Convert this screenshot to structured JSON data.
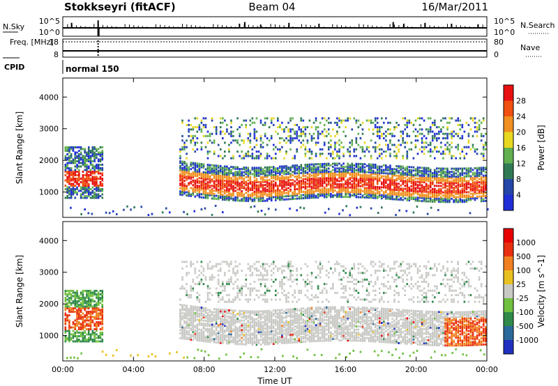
{
  "chart_data": [
    {
      "type": "line",
      "title": "Stokkseyri (fitACF)",
      "beam": "Beam 04",
      "date": "16/Mar/2011",
      "panels": {
        "noise": {
          "left_label": "N.Sky",
          "right_label": "N.Search",
          "left_ticks": [
            "10^5",
            "10^0"
          ],
          "right_ticks": [
            "10^5",
            "10^0"
          ],
          "spikes_hours": [
            0.5,
            2.0,
            10.0,
            10.3,
            11.2,
            12.8,
            14.5,
            18.7,
            19.3,
            20.5,
            22.0,
            23.5
          ],
          "spike_heights": [
            0.6,
            0.9,
            0.5,
            0.7,
            0.4,
            0.6,
            0.5,
            0.7,
            0.5,
            0.6,
            0.5,
            0.4
          ]
        },
        "frequency": {
          "left_label": "Freq. [MHz]",
          "right_label": "Nave",
          "left_ticks": [
            "18",
            "8"
          ],
          "right_ticks": [
            "80",
            "0"
          ],
          "gap_hour": 2.0
        },
        "cpid": {
          "label": "CPID",
          "mode": "normal 150"
        }
      },
      "power": {
        "ylabel": "Slant Range [km]",
        "yticks": [
          1000,
          2000,
          3000,
          4000
        ],
        "ylim": [
          200,
          4600
        ],
        "colorbar_label": "Power [dB]",
        "colorbar_ticks": [
          "4",
          "8",
          "12",
          "16",
          "20",
          "24",
          "28"
        ],
        "colors": [
          "#1f2fd6",
          "#2446a8",
          "#2f7a54",
          "#60b050",
          "#e8d820",
          "#f09020",
          "#f05010",
          "#e81010"
        ]
      },
      "velocity": {
        "ylabel": "Slant Range [km]",
        "yticks": [
          1000,
          2000,
          3000,
          4000
        ],
        "ylim": [
          200,
          4600
        ],
        "colorbar_label": "Velocity [m s^-1]",
        "colorbar_ticks": [
          "1000",
          "500",
          "100",
          "25",
          "-25",
          "-100",
          "-500",
          "-1000"
        ],
        "colors": [
          "#2030c0",
          "#2a6a9a",
          "#2f8a4a",
          "#70c040",
          "#c8c8c4",
          "#e8c020",
          "#f08020",
          "#e83010",
          "#e80000"
        ]
      },
      "x": {
        "label": "Time UT",
        "ticks": [
          "00:00",
          "04:00",
          "08:00",
          "12:00",
          "16:00",
          "20:00",
          "00:00"
        ],
        "range_hours": [
          0,
          24
        ]
      }
    }
  ]
}
